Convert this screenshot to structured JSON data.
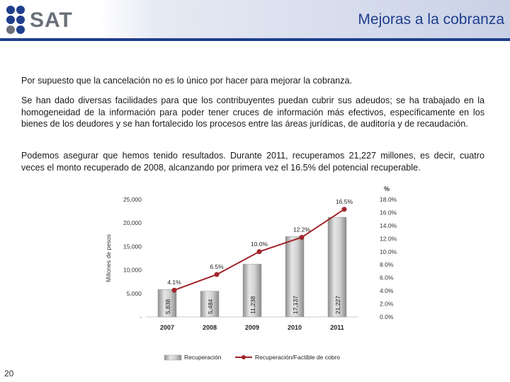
{
  "header": {
    "title": "Mejoras a la cobranza",
    "logo_text": "SAT",
    "colors": {
      "accent": "#1f3e8c",
      "logo_grey": "#6a6f7a"
    }
  },
  "body": {
    "paragraphs": [
      "Por supuesto que la cancelación no es lo único por hacer para mejorar la cobranza.",
      "Se han dado diversas facilidades para que los contribuyentes puedan cubrir sus adeudos; se ha trabajado en la homogeneidad de la información para poder tener cruces de información más efectivos, específicamente en los bienes de los deudores y se han fortalecido los procesos entre las áreas jurídicas, de auditoría y de recaudación.",
      "Podemos asegurar que hemos tenido resultados. Durante 2011, recuperamos 21,227 millones, es decir, cuatro veces el monto recuperado de 2008, alcanzando por primera vez el 16.5% del potencial recuperable."
    ]
  },
  "chart_data": {
    "type": "bar",
    "categories": [
      "2007",
      "2008",
      "2009",
      "2010",
      "2011"
    ],
    "series": [
      {
        "name": "Recuperación",
        "type": "bar",
        "values": [
          5838,
          5484,
          11238,
          17137,
          21227
        ],
        "labels": [
          "5,838",
          "5,484",
          "11,238",
          "17,137",
          "21,227"
        ],
        "color": "#b8b8b8"
      },
      {
        "name": "Recuperación/Factible de cobro",
        "type": "line",
        "axis": "right",
        "values": [
          4.1,
          6.5,
          10.0,
          12.2,
          16.5
        ],
        "labels": [
          "4.1%",
          "6.5%",
          "10.0%",
          "12.2%",
          "16.5%"
        ],
        "color": "#a0252c"
      }
    ],
    "ylabel": "Millones de pesos",
    "y2label": "%",
    "ylim": [
      0,
      25000
    ],
    "y2lim": [
      0,
      18
    ],
    "yticks": [
      0,
      5000,
      10000,
      15000,
      20000,
      25000
    ],
    "yticklabels": [
      "-",
      "5,000",
      "10,000",
      "15,000",
      "20,000",
      "25,000"
    ],
    "y2ticks": [
      0,
      2,
      4,
      6,
      8,
      10,
      12,
      14,
      16,
      18
    ],
    "y2ticklabels": [
      "0.0%",
      "2.0%",
      "4.0%",
      "6.0%",
      "8.0%",
      "10.0%",
      "12.0%",
      "14.0%",
      "16.0%",
      "18.0%"
    ],
    "legend": "bottom"
  },
  "footer": {
    "slide_number": "20"
  }
}
